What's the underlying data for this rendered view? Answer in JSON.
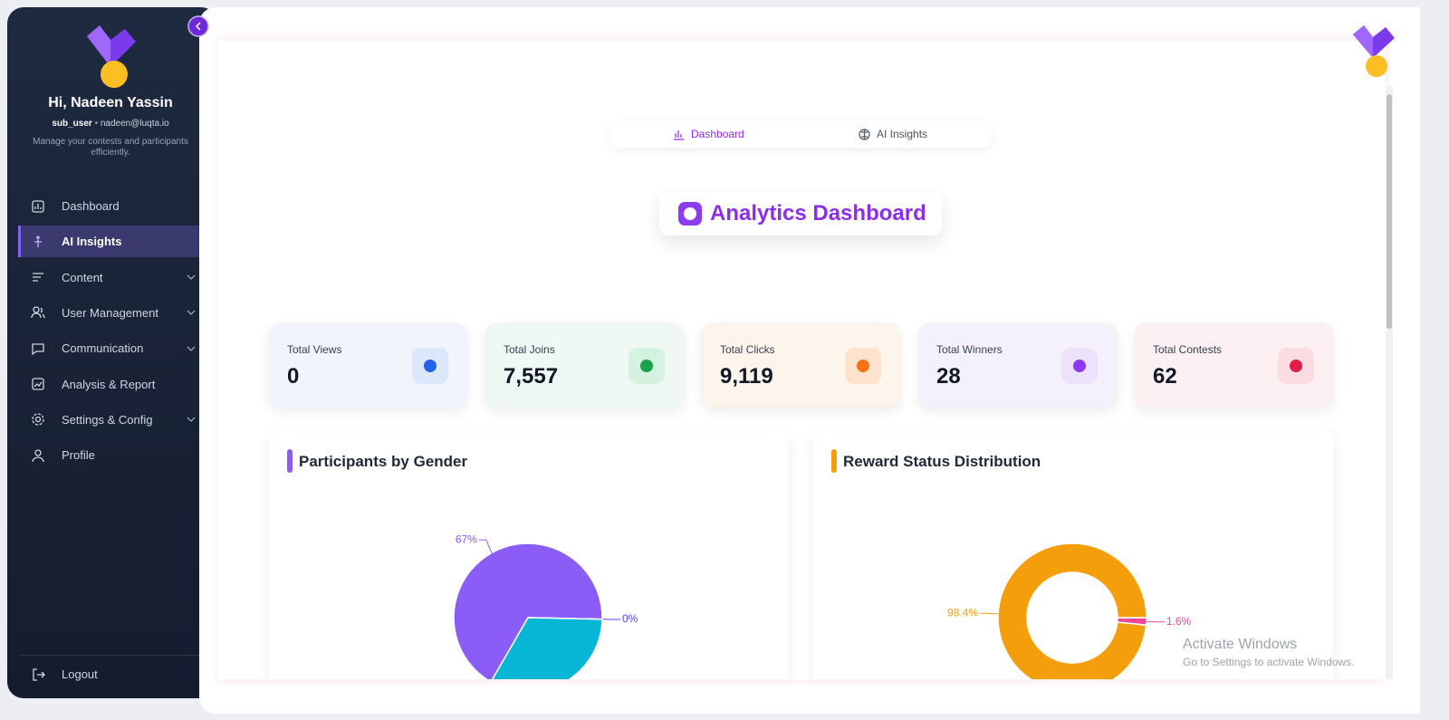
{
  "sidebar": {
    "greeting": "Hi, Nadeen Yassin",
    "role": "sub_user",
    "email": "nadeen@luqta.io",
    "tagline": "Manage your contests and participants efficiently.",
    "menu": [
      {
        "label": "Dashboard",
        "icon": "dash"
      },
      {
        "label": "AI Insights",
        "icon": "ai",
        "active": true
      },
      {
        "label": "Content",
        "icon": "content",
        "submenu": true
      },
      {
        "label": "User Management",
        "icon": "users",
        "submenu": true
      },
      {
        "label": "Communication",
        "icon": "chat",
        "submenu": true
      },
      {
        "label": "Analysis & Report",
        "icon": "report"
      },
      {
        "label": "Settings & Config",
        "icon": "gear",
        "submenu": true
      },
      {
        "label": "Profile",
        "icon": "user"
      }
    ],
    "logout": "Logout"
  },
  "tabs": [
    {
      "label": "Dashboard",
      "active": true
    },
    {
      "label": "AI Insights"
    }
  ],
  "page_title": "Analytics Dashboard",
  "stats": [
    {
      "label": "Total Views",
      "value": "0",
      "color": "#2563eb",
      "bg": "#f1f4fd",
      "chip": "#dbe7fb"
    },
    {
      "label": "Total Joins",
      "value": "7,557",
      "color": "#16a34a",
      "bg": "#eff8f3",
      "chip": "#d5f2e1"
    },
    {
      "label": "Total Clicks",
      "value": "9,119",
      "color": "#f97316",
      "bg": "#fdf4ec",
      "chip": "#fde3cc"
    },
    {
      "label": "Total Winners",
      "value": "28",
      "color": "#8b3cf0",
      "bg": "#f5f1fc",
      "chip": "#ece2fb"
    },
    {
      "label": "Total Contests",
      "value": "62",
      "color": "#e11d48",
      "bg": "#fdf0f2",
      "chip": "#fbdce2"
    }
  ],
  "chart_data": [
    {
      "type": "pie",
      "title": "Participants by Gender",
      "accent": "#8b5cf6",
      "categories": [
        null,
        null,
        null
      ],
      "values": [
        67,
        0,
        33
      ],
      "value_labels": [
        "67%",
        "0%",
        null
      ],
      "colors": [
        "#8b5cf6",
        "#4f46e5",
        "#06b6d4"
      ]
    },
    {
      "type": "donut",
      "title": "Reward Status Distribution",
      "accent": "#f59e0b",
      "categories": [
        null,
        null
      ],
      "values": [
        1.6,
        98.4
      ],
      "value_labels": [
        "1.6%",
        "98.4%"
      ],
      "colors": [
        "#ec4899",
        "#f59e0b"
      ]
    }
  ],
  "watermark": {
    "title": "Activate Windows",
    "subtitle": "Go to Settings to activate Windows."
  }
}
